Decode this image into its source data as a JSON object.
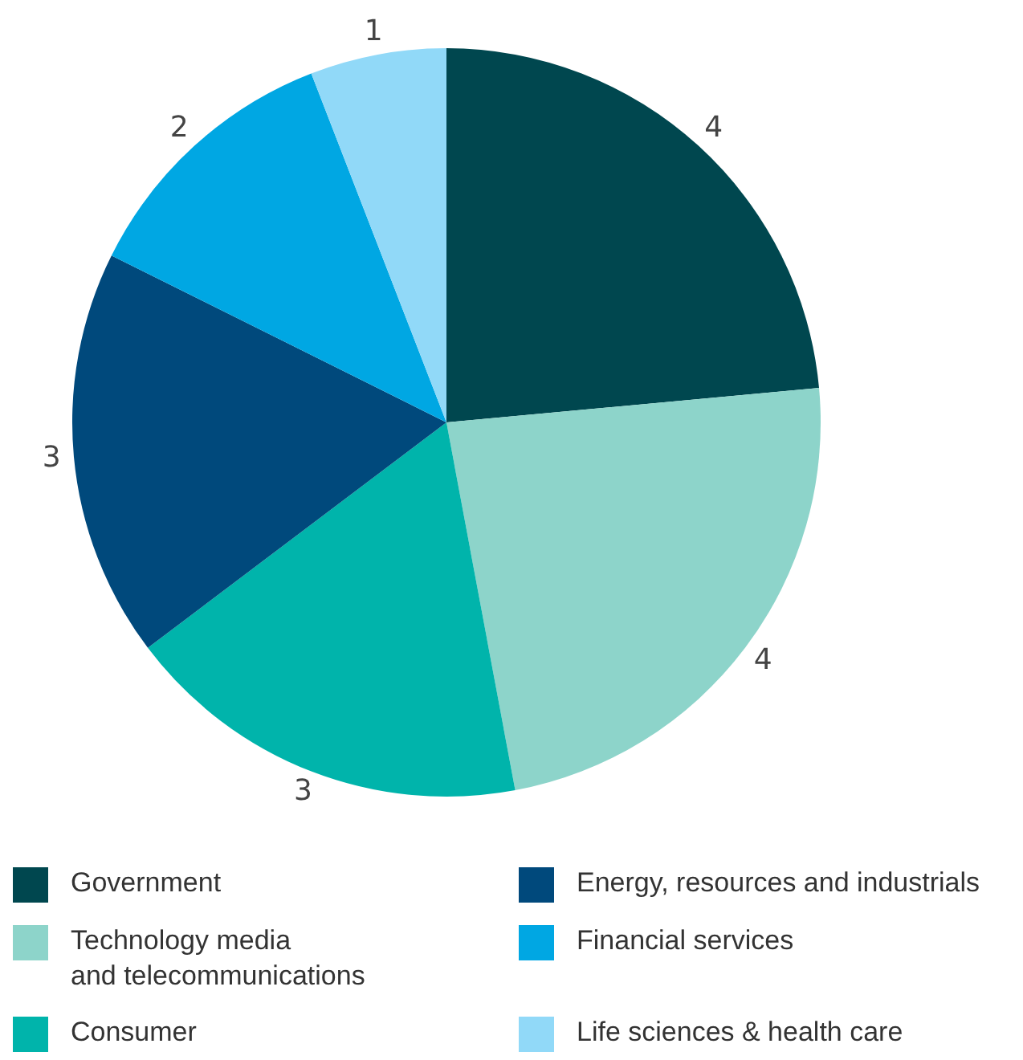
{
  "chart_data": {
    "type": "pie",
    "categories": [
      "Government",
      "Technology media\nand telecommunications",
      "Consumer",
      "Energy, resources and industrials",
      "Financial services",
      "Life sciences & health care"
    ],
    "values": [
      4,
      4,
      3,
      3,
      2,
      1
    ],
    "colors": [
      "#00474f",
      "#8dd4ca",
      "#00b4ab",
      "#00497c",
      "#00a7e3",
      "#91d9f8"
    ],
    "data_labels": true,
    "legend": "bottom"
  }
}
